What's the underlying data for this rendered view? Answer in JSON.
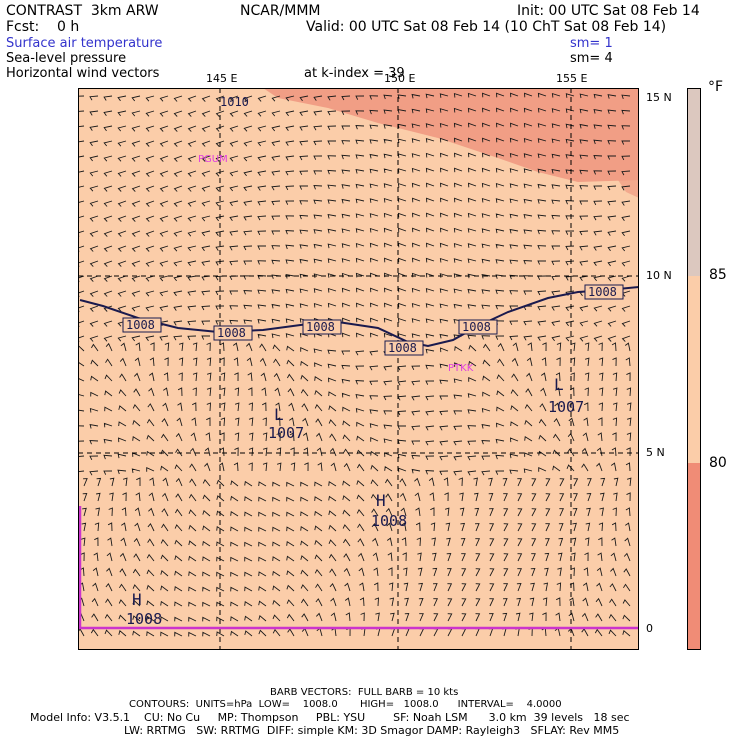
{
  "header": {
    "model": "CONTRAST  3km ARW",
    "center": "NCAR/MMM",
    "init": "Init: 00 UTC Sat 08 Feb 14",
    "fcst": "Fcst:    0 h",
    "valid": "Valid: 00 UTC Sat 08 Feb 14 (10 ChT Sat 08 Feb 14)",
    "field1": "Surface air temperature",
    "field1_sm": "sm= 1",
    "field2": "Sea-level pressure",
    "field2_sm": "sm= 4",
    "field3": "Horizontal wind vectors",
    "level": "at k-index = 39"
  },
  "map": {
    "lon_labels": [
      "145 E",
      "150 E",
      "155 E"
    ],
    "lat_labels": [
      "15 N",
      "10 N",
      "5 N",
      "0"
    ],
    "stations": [
      "PGUM",
      "PTKK"
    ],
    "isobar_labels": [
      "1010",
      "1008",
      "1008",
      "1008",
      "1008",
      "1008",
      "1008"
    ],
    "centers": [
      {
        "type": "L",
        "value": "1007"
      },
      {
        "type": "L",
        "value": "1007"
      },
      {
        "type": "H",
        "value": "1008"
      },
      {
        "type": "H",
        "value": "1008"
      }
    ],
    "colors": {
      "land_sea_bg": "#fbcda9",
      "warm": "#f09a82",
      "isobar": "#1a1a4e",
      "station": "#e040e0",
      "equator": "#cc33cc"
    }
  },
  "colorbar": {
    "unit": "°F",
    "ticks": [
      "85",
      "80"
    ],
    "segments": [
      {
        "color": "#dcc8bf",
        "from": 85,
        "to": 90
      },
      {
        "color": "#fbcda9",
        "from": 80,
        "to": 85
      },
      {
        "color": "#f08c76",
        "from": 75,
        "to": 80
      }
    ]
  },
  "footer": {
    "barb": "BARB VECTORS:  FULL BARB = 10 kts",
    "contours": "CONTOURS:  UNITS=hPa  LOW=    1008.0       HIGH=   1008.0      INTERVAL=    4.0000",
    "model_info": "Model Info: V3.5.1    CU: No Cu     MP: Thompson     PBL: YSU        SF: Noah LSM      3.0 km  39 levels   18 sec",
    "physics": "LW: RRTMG   SW: RRTMG  DIFF: simple KM: 3D Smagor DAMP: Rayleigh3   SFLAY: Rev MM5"
  }
}
